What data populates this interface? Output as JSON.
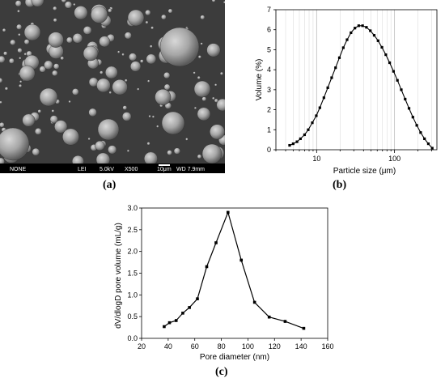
{
  "panels": {
    "a": {
      "label": "(a)",
      "sem_bar": {
        "detector_mode": "NONE",
        "signal": "LEI",
        "voltage": "5.0kV",
        "magnification": "X500",
        "scale": "10μm",
        "working_distance": "WD 7.9mm"
      }
    },
    "b": {
      "label": "(b)"
    },
    "c": {
      "label": "(c)"
    }
  },
  "chart_data": [
    {
      "panel": "b",
      "type": "line",
      "xlabel": "Particle size (μm)",
      "ylabel": "Volume (%)",
      "xscale": "log",
      "xlim": [
        3,
        350
      ],
      "ylim": [
        0,
        7
      ],
      "yticks": [
        0,
        1,
        2,
        3,
        4,
        5,
        6,
        7
      ],
      "xticks": [
        10,
        100
      ],
      "grid": "vertical log minor gridlines",
      "x": [
        4.5,
        5.0,
        5.6,
        6.2,
        7.0,
        7.8,
        8.8,
        9.9,
        11.0,
        12.4,
        13.9,
        15.6,
        17.5,
        19.6,
        22.0,
        24.6,
        27.6,
        31.0,
        34.7,
        38.9,
        43.6,
        48.9,
        54.8,
        61.5,
        68.9,
        77.3,
        86.6,
        97.1,
        108.9,
        122.1,
        136.9,
        153.5,
        172.1,
        193.0,
        216.3,
        242.5,
        271.9,
        304.9
      ],
      "y": [
        0.22,
        0.3,
        0.4,
        0.55,
        0.75,
        1.0,
        1.35,
        1.7,
        2.1,
        2.6,
        3.1,
        3.6,
        4.1,
        4.6,
        5.1,
        5.5,
        5.85,
        6.08,
        6.2,
        6.2,
        6.12,
        5.95,
        5.72,
        5.45,
        5.12,
        4.75,
        4.35,
        3.92,
        3.47,
        3.0,
        2.53,
        2.07,
        1.63,
        1.22,
        0.86,
        0.55,
        0.3,
        0.08
      ]
    },
    {
      "panel": "c",
      "type": "line",
      "xlabel": "Pore diameter (nm)",
      "ylabel": "dV/dlogD pore volume (mL/g)",
      "xlim": [
        20,
        160
      ],
      "ylim": [
        0,
        3.0
      ],
      "xticks": [
        20,
        40,
        60,
        80,
        100,
        120,
        140,
        160
      ],
      "yticks": [
        "0.0",
        "0.5",
        "1.0",
        "1.5",
        "2.0",
        "2.5",
        "3.0"
      ],
      "grid": "none",
      "x": [
        37,
        41,
        46,
        51,
        56,
        62,
        69,
        76,
        85,
        95,
        105,
        116,
        128,
        142
      ],
      "y": [
        0.27,
        0.36,
        0.41,
        0.58,
        0.71,
        0.91,
        1.65,
        2.2,
        2.9,
        1.8,
        0.83,
        0.49,
        0.39,
        0.23
      ]
    }
  ]
}
